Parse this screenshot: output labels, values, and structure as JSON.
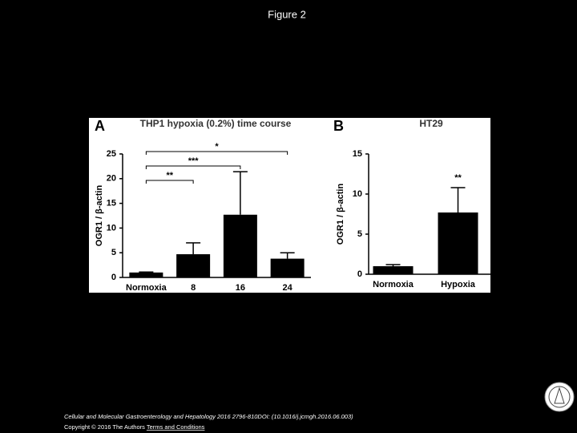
{
  "page": {
    "title": "Figure 2",
    "citation": "Cellular and Molecular Gastroenterology and Hepatology 2016 2796-810DOI: (10.1016/j.jcmgh.2016.06.003)",
    "copyright": "Copyright © 2016 The Authors",
    "link": "Terms and Conditions"
  },
  "chart_data": [
    {
      "type": "bar",
      "panel": "A",
      "title": "THP1 hypoxia (0.2%) time course",
      "ylabel": "OGR1 / β-actin",
      "categories": [
        "Normoxia",
        "8",
        "16",
        "24"
      ],
      "values": [
        1,
        4.7,
        12.7,
        3.8
      ],
      "errors": [
        0.1,
        2.3,
        8.7,
        1.2
      ],
      "color": "#000000",
      "ylim": [
        0,
        25
      ],
      "yticks": [
        0,
        5,
        10,
        15,
        20,
        25
      ],
      "brackets": [
        {
          "text": "*",
          "from": 0,
          "to": 3
        },
        {
          "text": "***",
          "from": 0,
          "to": 2
        },
        {
          "text": "**",
          "from": 0,
          "to": 1
        }
      ]
    },
    {
      "type": "bar",
      "panel": "B",
      "title": "HT29",
      "ylabel": "OGR1 / β-actin",
      "categories": [
        "Normoxia",
        "Hypoxia"
      ],
      "values": [
        1,
        7.7
      ],
      "errors": [
        0.2,
        3.1
      ],
      "color": "#000000",
      "ylim": [
        0,
        15
      ],
      "yticks": [
        0,
        5,
        10,
        15
      ],
      "markers": [
        {
          "text": "**",
          "index": 1
        }
      ]
    }
  ]
}
